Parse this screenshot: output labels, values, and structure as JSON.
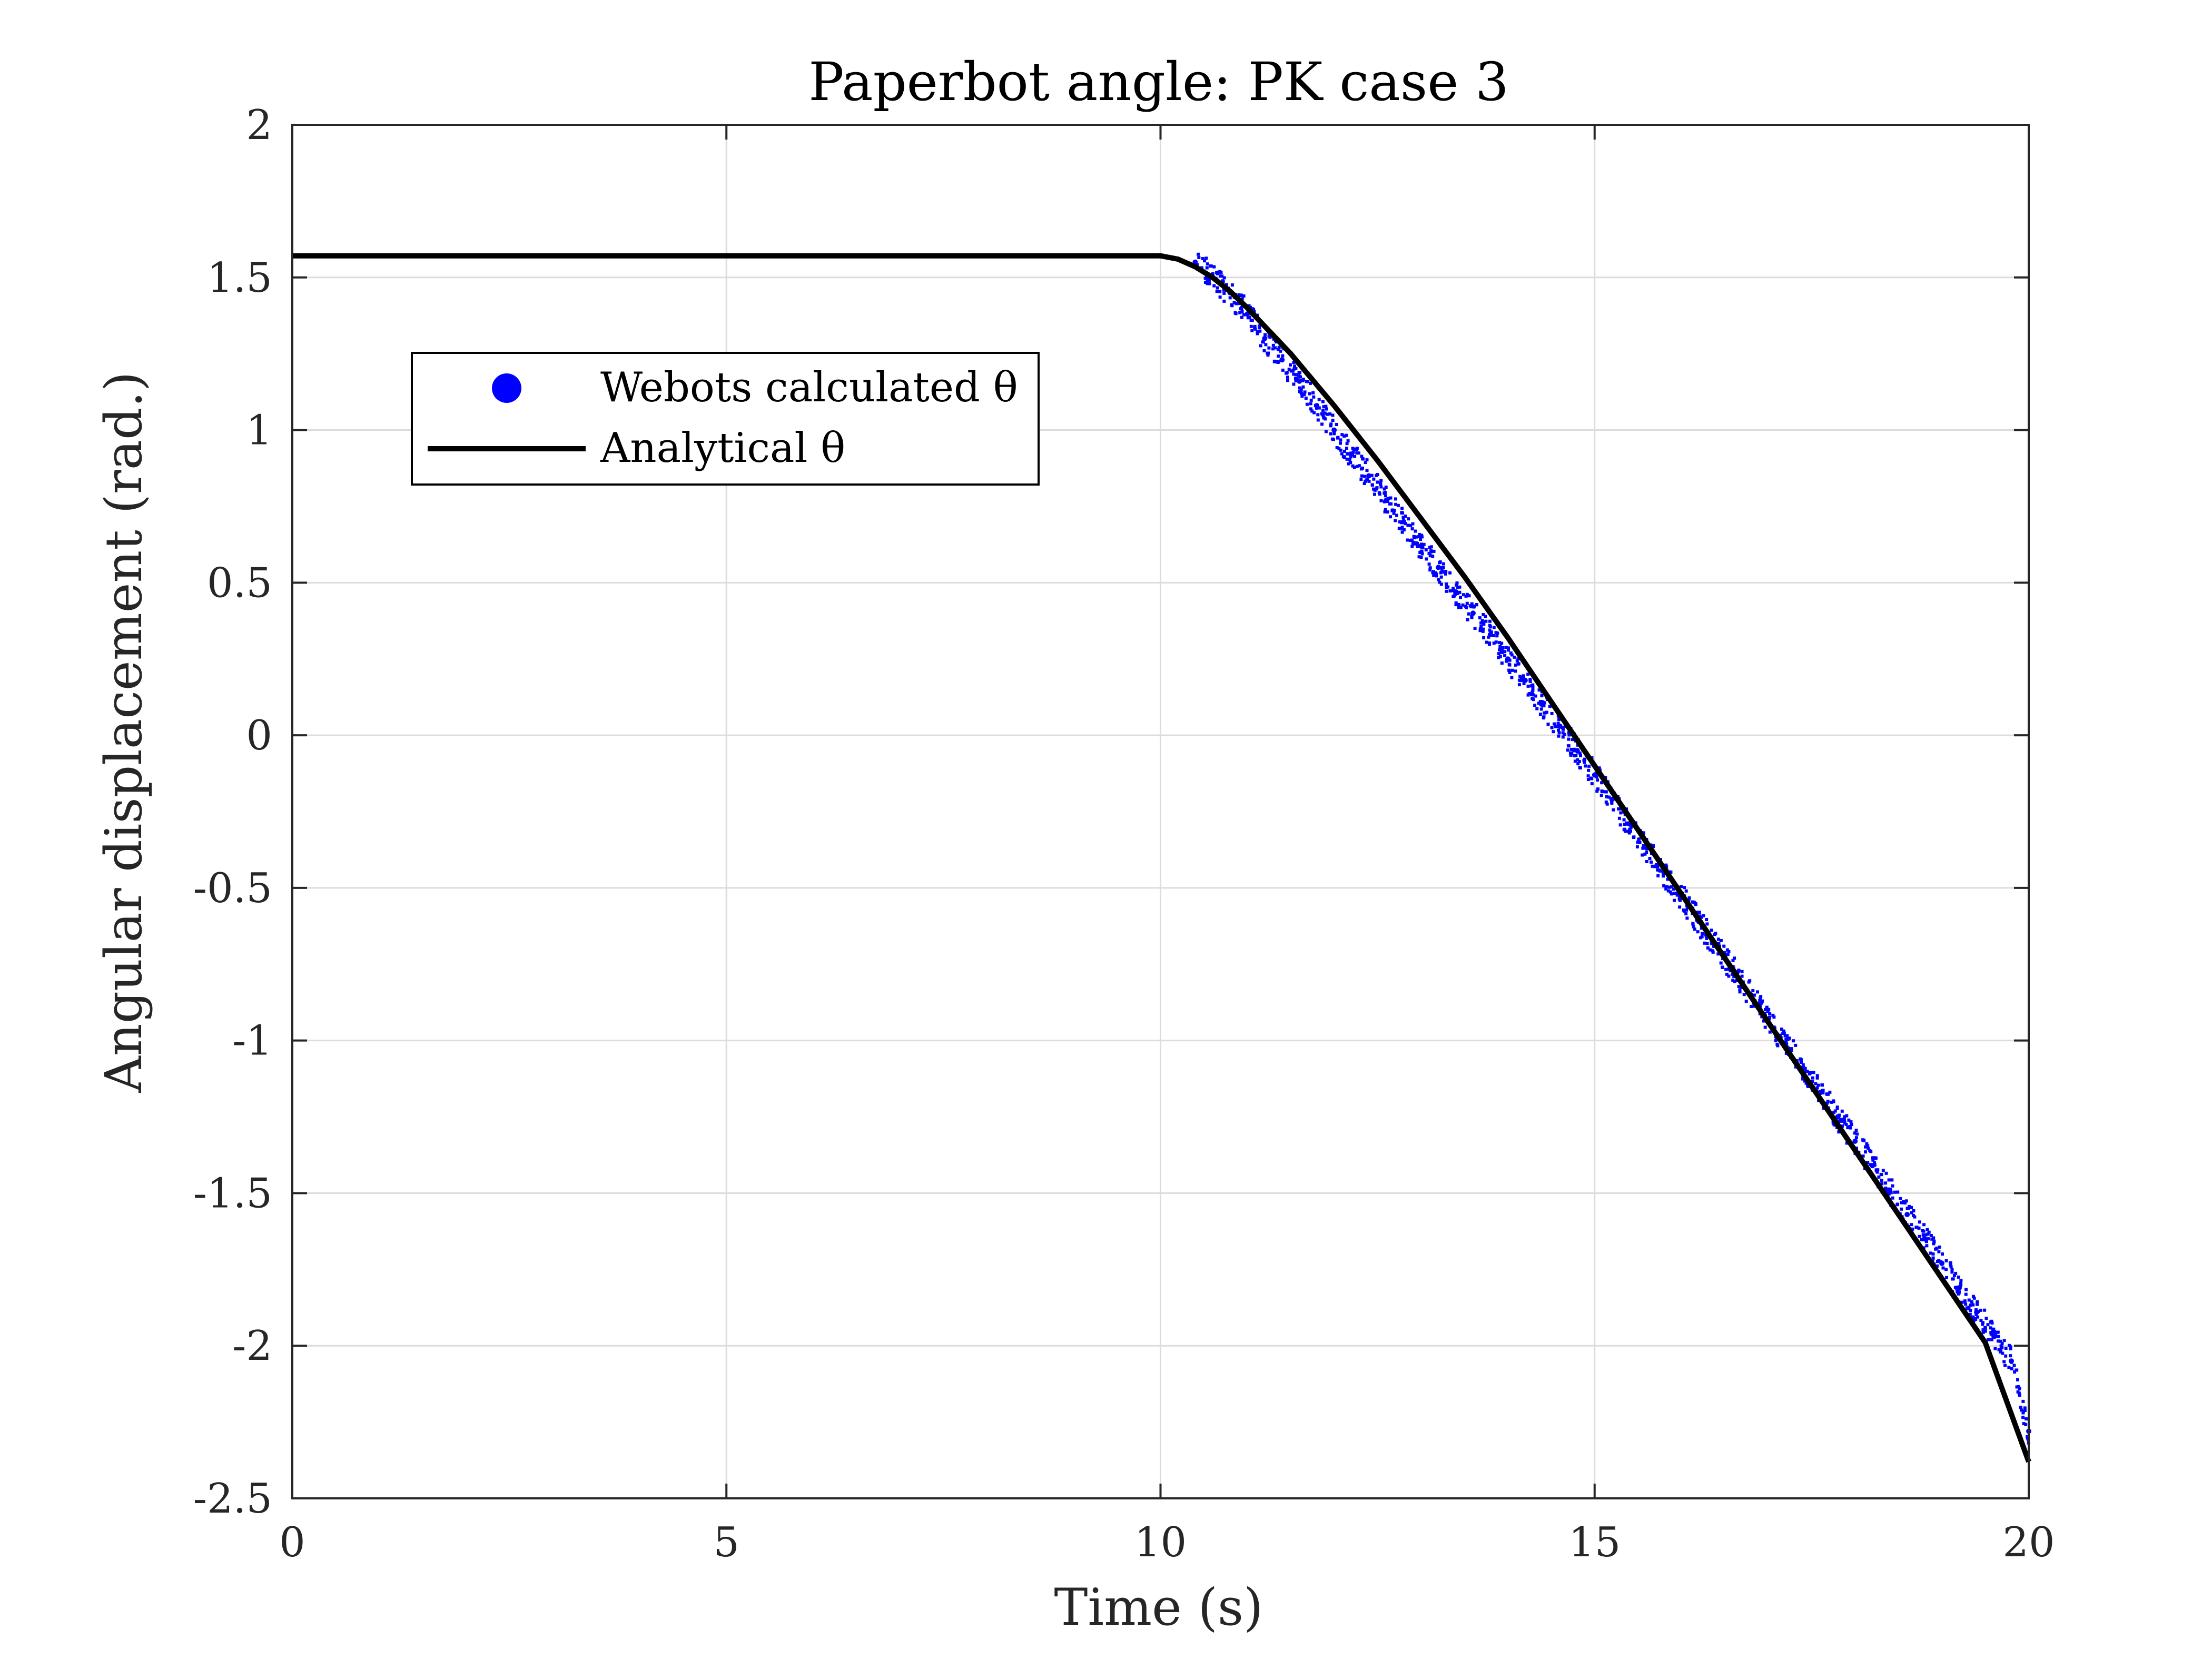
{
  "chart_data": {
    "type": "scatter",
    "title": "Paperbot angle: PK case 3",
    "xlabel": "Time (s)",
    "ylabel": "Angular displacement (rad.)",
    "xlim": [
      0,
      20
    ],
    "ylim": [
      -2.5,
      2
    ],
    "xticks": [
      0,
      5,
      10,
      15,
      20
    ],
    "xtick_labels": [
      "0",
      "5",
      "10",
      "15",
      "20"
    ],
    "yticks": [
      2,
      1.5,
      1,
      0.5,
      0,
      -0.5,
      -1,
      -1.5,
      -2,
      -2.5
    ],
    "ytick_labels": [
      "2",
      "1.5",
      "1",
      "0.5",
      "0",
      "-0.5",
      "-1",
      "-1.5",
      "-2",
      "-2.5"
    ],
    "grid": true,
    "legend_position": "upper-left",
    "series": [
      {
        "name": "Webots calculated θ",
        "style": "points",
        "color": "#0000ff",
        "x": [
          10.4,
          10.6,
          10.8,
          11.0,
          11.2,
          11.4,
          11.6,
          11.8,
          12.0,
          12.2,
          12.4,
          12.6,
          12.8,
          13.0,
          13.2,
          13.4,
          13.6,
          13.8,
          14.0,
          14.2,
          14.4,
          14.6,
          14.8,
          15.0,
          15.2,
          15.4,
          15.6,
          15.8,
          16.0,
          16.2,
          16.4,
          16.6,
          16.8,
          17.0,
          17.2,
          17.4,
          17.6,
          17.8,
          18.0,
          18.2,
          18.4,
          18.6,
          18.8,
          19.0,
          19.2,
          19.4,
          19.6,
          19.8,
          20.0
        ],
        "y": [
          1.55,
          1.5,
          1.45,
          1.38,
          1.3,
          1.23,
          1.16,
          1.08,
          1.0,
          0.92,
          0.85,
          0.77,
          0.7,
          0.62,
          0.55,
          0.47,
          0.4,
          0.33,
          0.25,
          0.18,
          0.1,
          0.03,
          -0.05,
          -0.13,
          -0.21,
          -0.29,
          -0.37,
          -0.45,
          -0.53,
          -0.61,
          -0.69,
          -0.77,
          -0.85,
          -0.93,
          -1.01,
          -1.09,
          -1.17,
          -1.25,
          -1.33,
          -1.41,
          -1.49,
          -1.57,
          -1.65,
          -1.73,
          -1.81,
          -1.89,
          -1.97,
          -2.05,
          -2.28
        ]
      },
      {
        "name": "Analytical θ",
        "style": "line",
        "color": "#000000",
        "x": [
          0,
          2,
          4,
          6,
          8,
          10,
          10.2,
          10.4,
          10.6,
          10.8,
          11.0,
          11.5,
          12.0,
          12.5,
          13.0,
          13.5,
          14.0,
          14.5,
          15.0,
          15.5,
          16.0,
          16.5,
          17.0,
          17.5,
          18.0,
          18.5,
          19.0,
          19.5,
          20.0
        ],
        "y": [
          1.5708,
          1.5708,
          1.5708,
          1.5708,
          1.5708,
          1.5708,
          1.56,
          1.535,
          1.5,
          1.455,
          1.4,
          1.25,
          1.08,
          0.9,
          0.71,
          0.52,
          0.32,
          0.11,
          -0.1,
          -0.31,
          -0.52,
          -0.73,
          -0.94,
          -1.15,
          -1.36,
          -1.57,
          -1.78,
          -1.99,
          -2.38
        ]
      }
    ]
  },
  "colors": {
    "grid": "#dcdcdc",
    "axis": "#262626",
    "webots": "#0000ff",
    "analytical": "#000000"
  }
}
